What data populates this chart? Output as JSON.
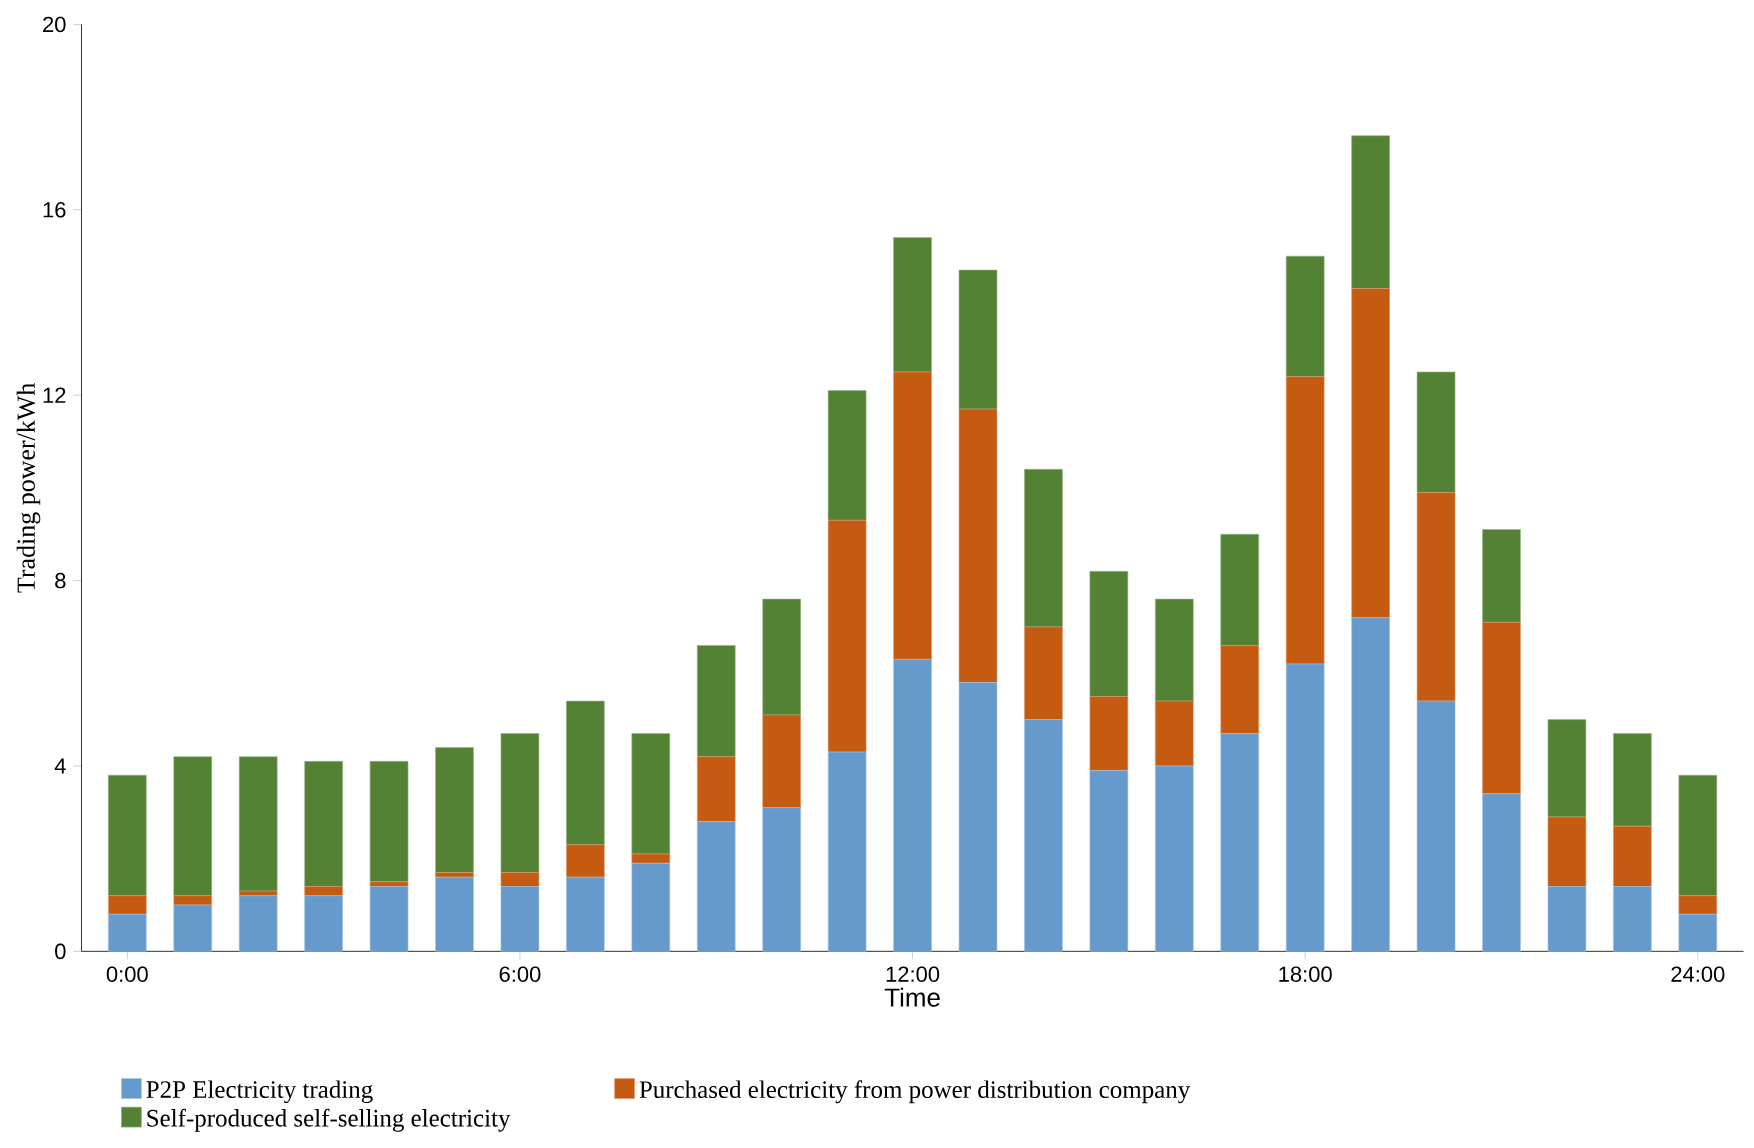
{
  "chart_data": {
    "type": "bar",
    "stacked": true,
    "xlabel": "Time",
    "ylabel": "Trading power/kWh",
    "x": [
      0,
      1,
      2,
      3,
      4,
      5,
      6,
      7,
      8,
      9,
      10,
      11,
      12,
      13,
      14,
      15,
      16,
      17,
      18,
      19,
      20,
      21,
      22,
      23,
      24
    ],
    "xlim": [
      -0.7,
      24.7
    ],
    "xticks": [
      {
        "value": 0,
        "label": "0:00"
      },
      {
        "value": 6,
        "label": "6:00"
      },
      {
        "value": 12,
        "label": "12:00"
      },
      {
        "value": 18,
        "label": "18:00"
      },
      {
        "value": 24,
        "label": "24:00"
      }
    ],
    "ylim": [
      0,
      20
    ],
    "yticks": [
      0,
      4,
      8,
      12,
      16,
      20
    ],
    "series": [
      {
        "name": "P2P Electricity trading",
        "color": "#6699cc",
        "values": [
          0.8,
          1.0,
          1.2,
          1.2,
          1.4,
          1.6,
          1.4,
          1.6,
          1.9,
          2.8,
          3.1,
          4.3,
          6.3,
          5.8,
          5.0,
          3.9,
          4.0,
          4.7,
          6.2,
          7.2,
          5.4,
          3.4,
          1.4,
          1.4,
          0.8
        ]
      },
      {
        "name": "Purchased electricity from power distribution company",
        "color": "#c55a11",
        "values": [
          0.4,
          0.2,
          0.1,
          0.2,
          0.1,
          0.1,
          0.3,
          0.7,
          0.2,
          1.4,
          2.0,
          5.0,
          6.2,
          5.9,
          2.0,
          1.6,
          1.4,
          1.9,
          6.2,
          7.1,
          4.5,
          3.7,
          1.5,
          1.3,
          0.4
        ]
      },
      {
        "name": "Self-produced self-selling electricity",
        "color": "#548235",
        "values": [
          2.6,
          3.0,
          2.9,
          2.7,
          2.6,
          2.7,
          3.0,
          3.1,
          2.6,
          2.4,
          2.5,
          2.8,
          2.9,
          3.0,
          3.4,
          2.7,
          2.2,
          2.4,
          2.6,
          3.3,
          2.6,
          2.0,
          2.1,
          2.0,
          2.6
        ]
      }
    ],
    "legend": "bottom",
    "grid": false
  }
}
